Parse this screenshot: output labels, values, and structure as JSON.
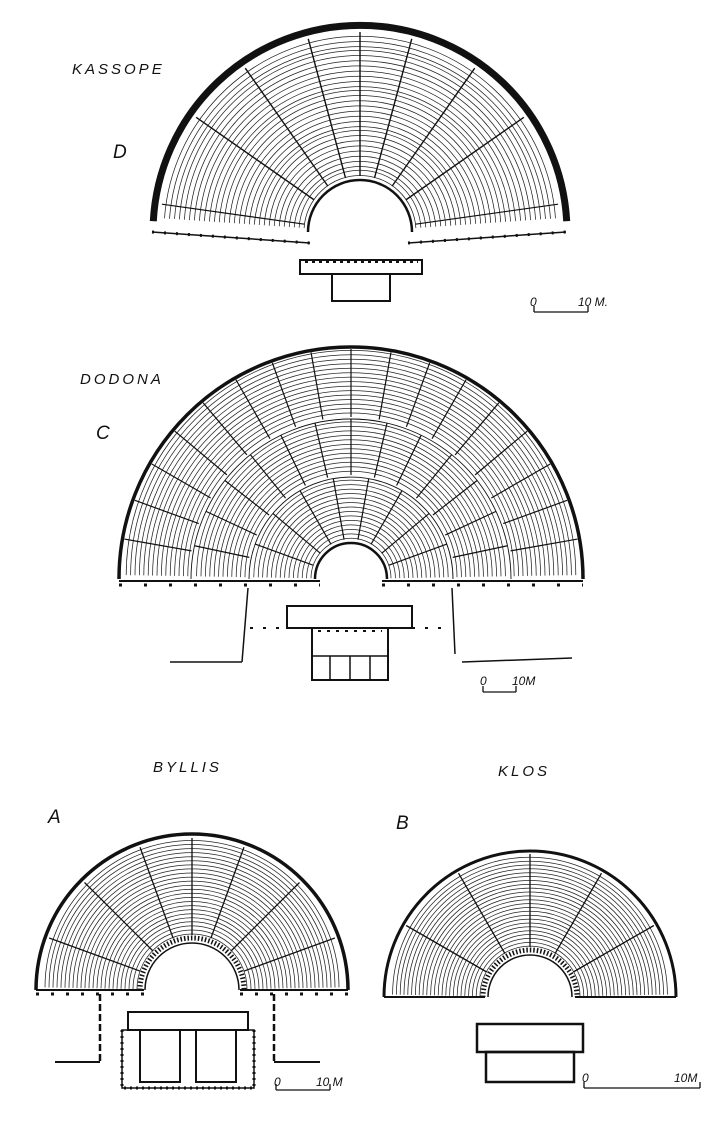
{
  "plate": {
    "theatres": [
      {
        "key": "kassope",
        "name": "KASSOPE",
        "letter": "D",
        "scale": {
          "zero": "0",
          "length": "10 M."
        }
      },
      {
        "key": "dodona",
        "name": "DODONA",
        "letter": "C",
        "scale": {
          "zero": "0",
          "length": "10M"
        }
      },
      {
        "key": "byllis",
        "name": "BYLLIS",
        "letter": "A",
        "scale": {
          "zero": "0",
          "length": "10 M"
        }
      },
      {
        "key": "klos",
        "name": "KLOS",
        "letter": "B",
        "scale": {
          "zero": "0",
          "length": "10M"
        }
      }
    ]
  }
}
